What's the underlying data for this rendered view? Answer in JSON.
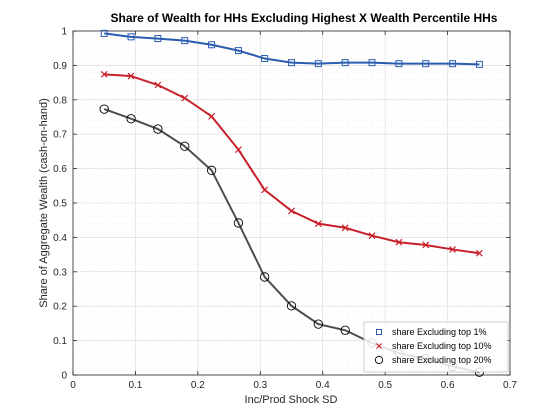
{
  "chart_data": {
    "type": "line",
    "title": "Share of Wealth for HHs Excluding Highest X Wealth Percentile HHs",
    "xlabel": "Inc/Prod Shock SD",
    "ylabel": "Share of Aggregate Wealth (cash-on-hand)",
    "xlim": [
      0,
      0.7
    ],
    "ylim": [
      0,
      1
    ],
    "x_ticks": [
      "0",
      "0.1",
      "0.2",
      "0.3",
      "0.4",
      "0.5",
      "0.6",
      "0.7"
    ],
    "y_ticks": [
      "0",
      "0.1",
      "0.2",
      "0.3",
      "0.4",
      "0.5",
      "0.6",
      "0.7",
      "0.8",
      "0.9",
      "1"
    ],
    "grid": true,
    "legend_position": "bottom-right",
    "x": [
      0.05,
      0.093,
      0.136,
      0.179,
      0.222,
      0.265,
      0.307,
      0.35,
      0.393,
      0.436,
      0.479,
      0.522,
      0.565,
      0.608,
      0.651
    ],
    "series": [
      {
        "name": "share Excluding top 1%",
        "color": "#2a5db0",
        "marker": "square",
        "values": [
          0.993,
          0.983,
          0.978,
          0.972,
          0.96,
          0.943,
          0.92,
          0.908,
          0.905,
          0.908,
          0.908,
          0.905,
          0.905,
          0.905,
          0.903
        ]
      },
      {
        "name": "share Excluding top 10%",
        "color": "#c8202a",
        "marker": "x",
        "values": [
          0.874,
          0.869,
          0.843,
          0.805,
          0.752,
          0.655,
          0.538,
          0.477,
          0.44,
          0.428,
          0.405,
          0.386,
          0.378,
          0.365,
          0.354
        ]
      },
      {
        "name": "share Excluding top 20%",
        "color": "#4d4d4d",
        "marker": "circle",
        "values": [
          0.773,
          0.745,
          0.715,
          0.665,
          0.595,
          0.442,
          0.285,
          0.201,
          0.148,
          0.13,
          0.093,
          0.063,
          0.047,
          0.025,
          0.008
        ]
      }
    ]
  }
}
